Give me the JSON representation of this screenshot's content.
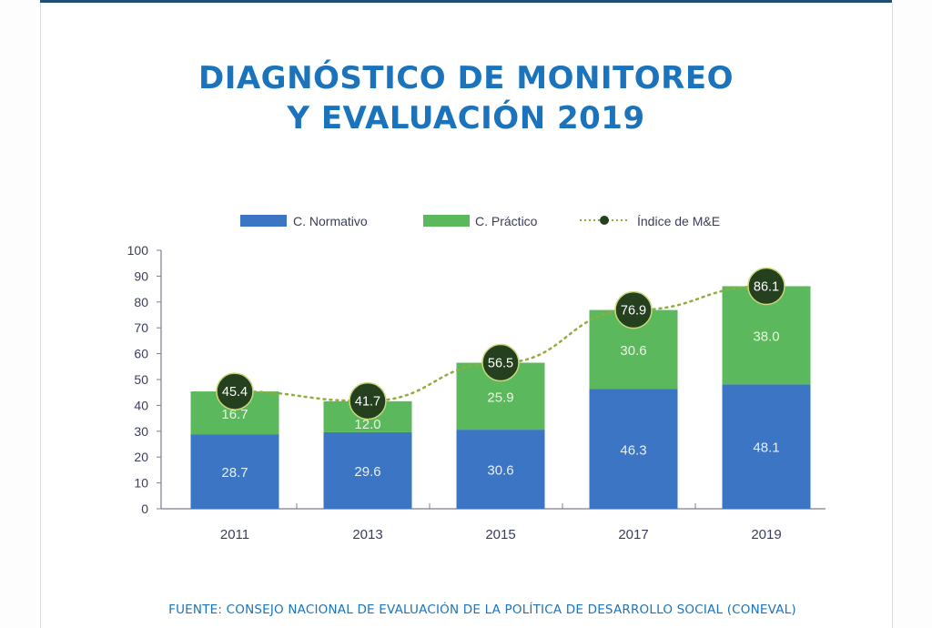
{
  "header": {
    "title_line1": "DIAGNÓSTICO DE MONITOREO",
    "title_line2": "Y EVALUACIÓN 2019"
  },
  "footer": {
    "source": "FUENTE: CONSEJO NACIONAL DE EVALUACIÓN DE LA POLÍTICA DE DESARROLLO SOCIAL (CONEVAL)"
  },
  "colors": {
    "title": "#1b74bb",
    "normativo": "#3b75c3",
    "practico": "#5cb85c",
    "indice_marker": "#24401e",
    "indice_line": "#8fae3a",
    "axis": "#7d7d8a",
    "tick_text": "#3a3d5c"
  },
  "chart_data": {
    "type": "bar",
    "stacked": true,
    "title": "DIAGNÓSTICO DE MONITOREO Y EVALUACIÓN 2019",
    "xlabel": "",
    "ylabel": "",
    "categories": [
      "2011",
      "2013",
      "2015",
      "2017",
      "2019"
    ],
    "ylim": [
      0,
      100
    ],
    "yticks": [
      0,
      10,
      20,
      30,
      40,
      50,
      60,
      70,
      80,
      90,
      100
    ],
    "grid": false,
    "legend_position": "top-center",
    "series": [
      {
        "name": "C. Normativo",
        "type": "bar",
        "values": [
          28.7,
          29.6,
          30.6,
          46.3,
          48.1
        ],
        "labels": [
          "28.7",
          "29.6",
          "30.6",
          "46.3",
          "48.1"
        ]
      },
      {
        "name": "C. Práctico",
        "type": "bar",
        "values": [
          16.7,
          12.0,
          25.9,
          30.6,
          38.0
        ],
        "labels": [
          "16.7",
          "12.0",
          "25.9",
          "30.6",
          "38.0"
        ]
      },
      {
        "name": "Índice de M&E",
        "type": "line",
        "style": "dotted",
        "marker": "circle",
        "values": [
          45.4,
          41.7,
          56.5,
          76.9,
          86.1
        ],
        "labels": [
          "45.4",
          "41.7",
          "56.5",
          "76.9",
          "86.1"
        ]
      }
    ]
  }
}
